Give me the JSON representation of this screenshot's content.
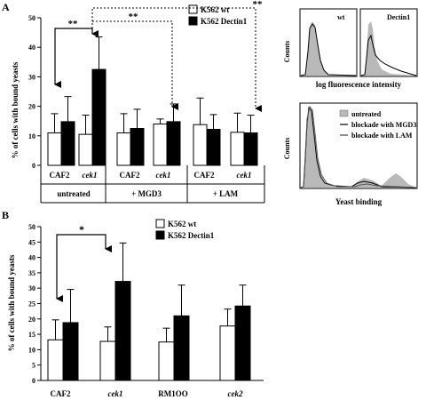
{
  "panel_labels": {
    "a": "A",
    "b": "B"
  },
  "chart_data": [
    {
      "type": "bar",
      "panel": "A",
      "ylabel": "% of cells with bound yeasts",
      "ylim": [
        0,
        50
      ],
      "yticks": [
        0,
        10,
        20,
        30,
        40,
        50
      ],
      "categories": [
        "CAF2",
        "cek1",
        "CAF2",
        "cek1",
        "CAF2",
        "cek1"
      ],
      "groups": [
        "untreated",
        "+ MGD3",
        "+ LAM"
      ],
      "series": [
        {
          "name": "K562 wt",
          "color": "#ffffff",
          "values": [
            11,
            10.5,
            11,
            14,
            13.8,
            11.2
          ],
          "errors": [
            6.5,
            6.5,
            6.5,
            1.7,
            9,
            6.5
          ]
        },
        {
          "name": "K562 Dectin1",
          "color": "#000000",
          "values": [
            14.8,
            32.5,
            12.5,
            14.8,
            12.2,
            11
          ],
          "errors": [
            8.5,
            11,
            6.5,
            6,
            5,
            6
          ]
        }
      ],
      "annotations": [
        {
          "text": "**",
          "from": "CAF2 untreated",
          "to": "cek1 untreated"
        },
        {
          "text": "**",
          "from": "cek1 untreated",
          "to": "cek1 + MGD3"
        },
        {
          "text": "**",
          "from": "cek1 untreated",
          "to": "cek1 + LAM"
        }
      ]
    },
    {
      "type": "bar",
      "panel": "B",
      "ylabel": "% of cells with bound yeasts",
      "ylim": [
        0,
        50
      ],
      "yticks": [
        0,
        5,
        10,
        15,
        20,
        25,
        30,
        35,
        40,
        45,
        50
      ],
      "categories": [
        "CAF2",
        "cek1",
        "RM1OO",
        "cek2"
      ],
      "series": [
        {
          "name": "K562 wt",
          "color": "#ffffff",
          "values": [
            13.2,
            12.7,
            12.5,
            17.7
          ],
          "errors": [
            6.5,
            4.7,
            4.5,
            5.5
          ]
        },
        {
          "name": "K562 Dectin1",
          "color": "#000000",
          "values": [
            18.8,
            32.2,
            21,
            24.2
          ],
          "errors": [
            10.8,
            12.5,
            10,
            6.8
          ]
        }
      ],
      "annotations": [
        {
          "text": "*",
          "from": "CAF2",
          "to": "cek1"
        }
      ]
    }
  ],
  "histograms": {
    "top": {
      "ylabel": "Counts",
      "xlabel": "log fluorescence intensity",
      "panels": [
        "wt",
        "Dectin1"
      ]
    },
    "bottom": {
      "ylabel": "Counts",
      "xlabel": "Yeast binding",
      "legend": [
        "untreated",
        "blockade with MGD3",
        "blockade with LAM"
      ]
    }
  }
}
